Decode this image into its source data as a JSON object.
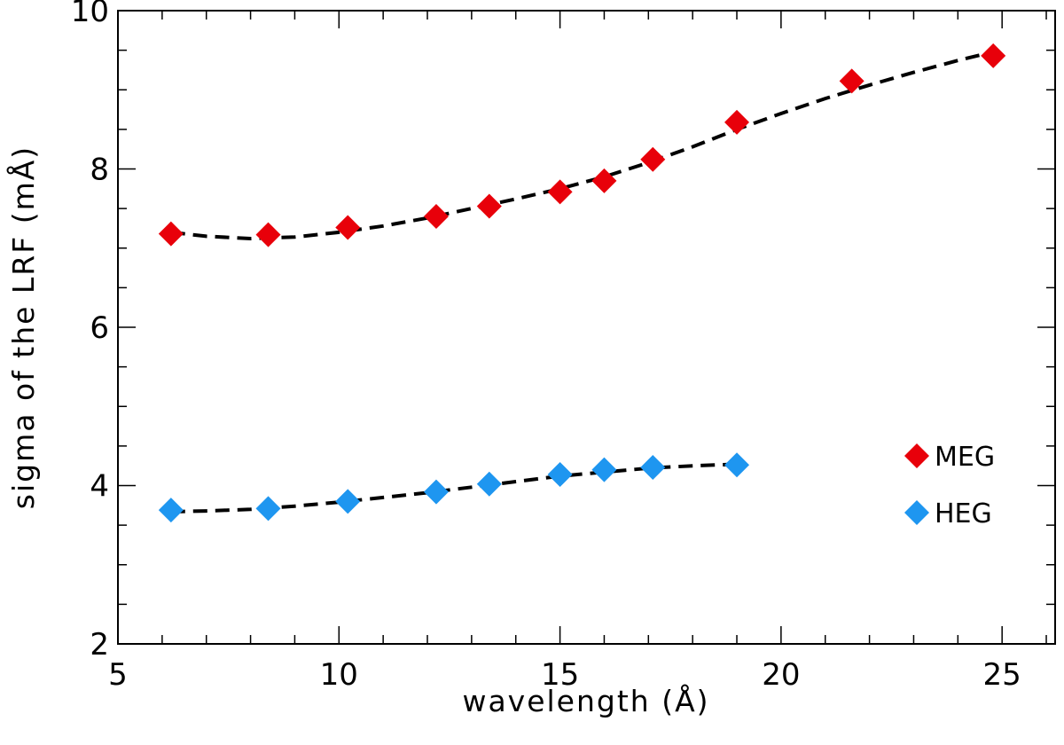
{
  "chart_data": {
    "type": "scatter",
    "xlabel": "wavelength (Å)",
    "ylabel": "sigma of the LRF (mÅ)",
    "xlim": [
      5,
      26.2
    ],
    "ylim": [
      2,
      10
    ],
    "xticks": [
      5,
      10,
      15,
      20,
      25
    ],
    "yticks": [
      2,
      4,
      6,
      8,
      10
    ],
    "xtick_labels": [
      "5",
      "10",
      "15",
      "20",
      "25"
    ],
    "ytick_labels": [
      "2",
      "4",
      "6",
      "8",
      "10"
    ],
    "x_minor_step": 1,
    "y_minor_step": 0.5,
    "grid": false,
    "legend": "right-middle",
    "series": [
      {
        "name": "MEG",
        "color": "#e8000a",
        "marker": "diamond",
        "x": [
          6.2,
          8.4,
          10.2,
          12.2,
          13.4,
          15.0,
          16.0,
          17.1,
          19.0,
          21.6,
          24.8
        ],
        "y": [
          7.18,
          7.17,
          7.26,
          7.4,
          7.53,
          7.71,
          7.85,
          8.12,
          8.59,
          9.11,
          9.43
        ],
        "fit": {
          "x": [
            6.2,
            7.0,
            8.0,
            9.0,
            10.0,
            11.0,
            12.0,
            13.0,
            14.0,
            15.0,
            16.0,
            17.0,
            18.0,
            19.0,
            20.0,
            21.0,
            22.0,
            23.0,
            24.0,
            24.8
          ],
          "y": [
            7.2,
            7.15,
            7.12,
            7.14,
            7.2,
            7.28,
            7.38,
            7.5,
            7.62,
            7.75,
            7.9,
            8.08,
            8.28,
            8.5,
            8.7,
            8.89,
            9.06,
            9.22,
            9.37,
            9.48
          ]
        }
      },
      {
        "name": "HEG",
        "color": "#1e96f0",
        "marker": "diamond",
        "x": [
          6.2,
          8.4,
          10.2,
          12.2,
          13.4,
          15.0,
          16.0,
          17.1,
          19.0
        ],
        "y": [
          3.69,
          3.71,
          3.8,
          3.92,
          4.02,
          4.14,
          4.2,
          4.23,
          4.26
        ],
        "fit": {
          "x": [
            6.2,
            7.0,
            8.0,
            9.0,
            10.0,
            11.0,
            12.0,
            13.0,
            14.0,
            15.0,
            16.0,
            17.0,
            18.0,
            19.0
          ],
          "y": [
            3.67,
            3.68,
            3.7,
            3.74,
            3.79,
            3.85,
            3.91,
            3.98,
            4.05,
            4.12,
            4.17,
            4.22,
            4.25,
            4.27
          ]
        }
      }
    ]
  }
}
